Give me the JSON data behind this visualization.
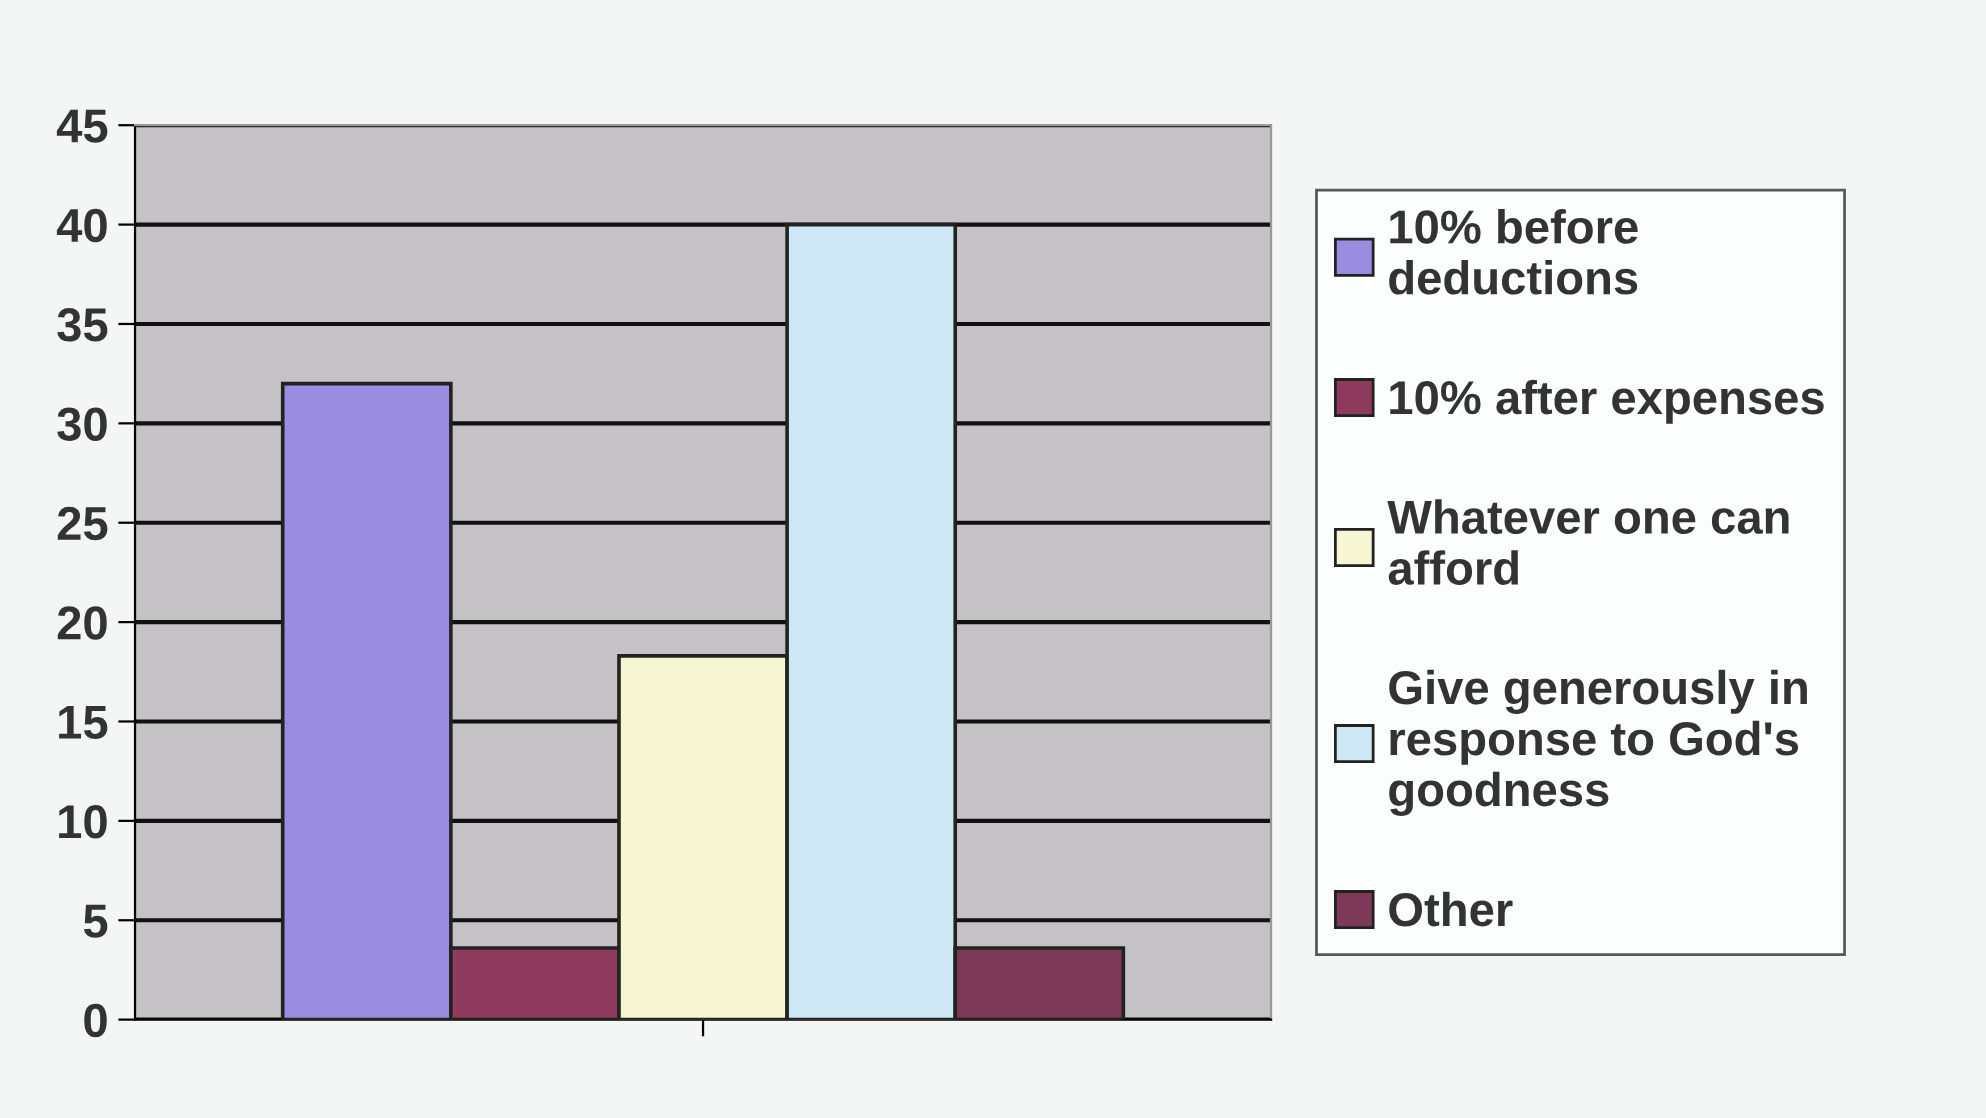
{
  "chart_data": {
    "type": "bar",
    "categories": [
      null
    ],
    "series": [
      {
        "name": "10% before deductions",
        "color": "#9a8ce0",
        "values": [
          32
        ]
      },
      {
        "name": "10% after expenses",
        "color": "#8e3a5c",
        "values": [
          3.6
        ]
      },
      {
        "name": "Whatever one can afford",
        "color": "#f6f6d2",
        "values": [
          18.3
        ]
      },
      {
        "name": "Give generously in response to God's goodness",
        "color": "#cde8f4",
        "values": [
          40
        ]
      },
      {
        "name": "Other",
        "color": "#7e3958",
        "values": [
          3.6
        ]
      }
    ],
    "ylim": [
      0,
      45
    ],
    "yticks": [
      0,
      5,
      10,
      15,
      20,
      25,
      30,
      35,
      40,
      45
    ],
    "grid": "y",
    "legend": "right"
  }
}
